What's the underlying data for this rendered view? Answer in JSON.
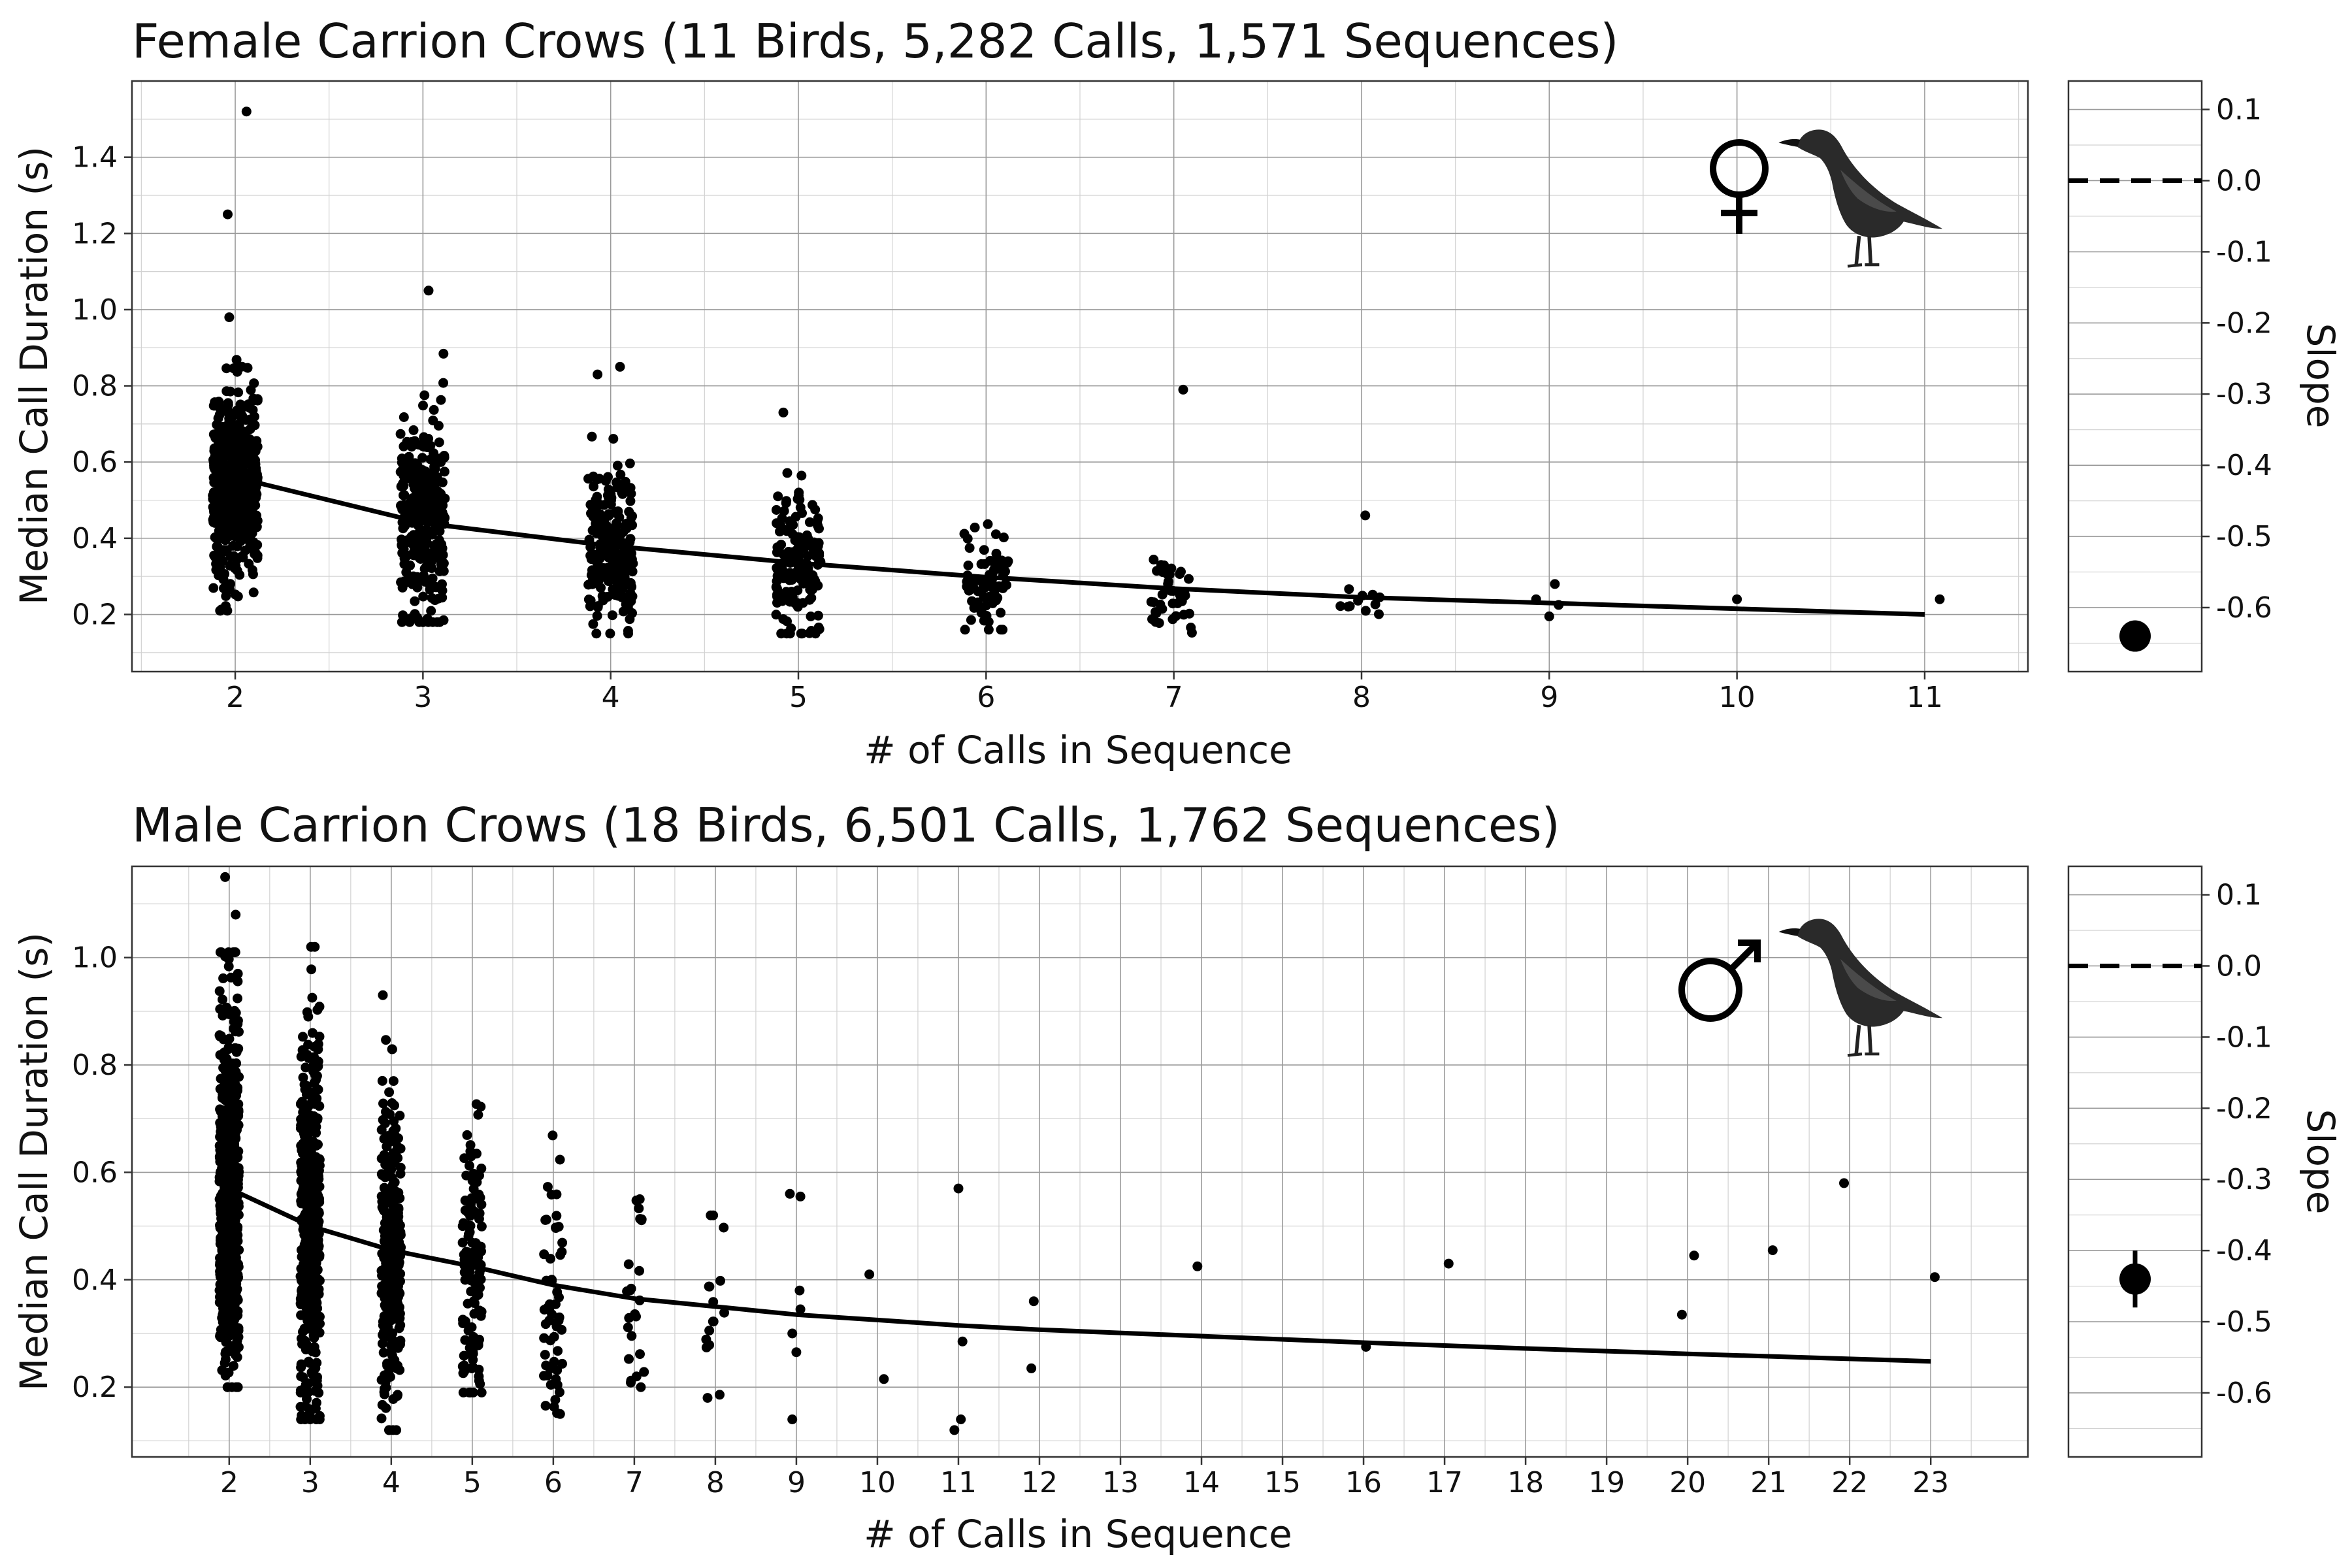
{
  "chart_data": [
    {
      "type": "scatter",
      "title": "Female Carrion Crows (11 Birds, 5,282 Calls, 1,571 Sequences)",
      "xlabel": "# of Calls in Sequence",
      "ylabel": "Median Call Duration (s)",
      "x_ticks": [
        2,
        3,
        4,
        5,
        6,
        7,
        8,
        9,
        10,
        11
      ],
      "y_ticks": [
        0.2,
        0.4,
        0.6,
        0.8,
        1.0,
        1.2,
        1.4
      ],
      "y_tick_labels": [
        "0.2",
        "0.4",
        "0.6",
        "0.8",
        "1.0",
        "1.2",
        "1.4"
      ],
      "xlim": [
        1.45,
        11.55
      ],
      "ylim": [
        0.05,
        1.6
      ],
      "grid": true,
      "symbol_icon": "female-symbol-icon",
      "bird_icon": "crow-icon",
      "fit_line": {
        "x": [
          2,
          3,
          4,
          5,
          6,
          7,
          8,
          9,
          10,
          11
        ],
        "y": [
          0.56,
          0.44,
          0.38,
          0.335,
          0.298,
          0.268,
          0.245,
          0.23,
          0.215,
          0.2
        ]
      },
      "jitter_groups": [
        {
          "x": 2,
          "n": 520,
          "center": 0.54,
          "spread": 0.13,
          "min": 0.21,
          "max": 0.98
        },
        {
          "x": 3,
          "n": 330,
          "center": 0.45,
          "spread": 0.13,
          "min": 0.18,
          "max": 0.93
        },
        {
          "x": 4,
          "n": 230,
          "center": 0.37,
          "spread": 0.1,
          "min": 0.15,
          "max": 0.72
        },
        {
          "x": 5,
          "n": 150,
          "center": 0.32,
          "spread": 0.09,
          "min": 0.15,
          "max": 0.64
        },
        {
          "x": 6,
          "n": 70,
          "center": 0.28,
          "spread": 0.07,
          "min": 0.16,
          "max": 0.54
        },
        {
          "x": 7,
          "n": 40,
          "center": 0.25,
          "spread": 0.05,
          "min": 0.12,
          "max": 0.51
        },
        {
          "x": 8,
          "n": 11,
          "center": 0.23,
          "spread": 0.025,
          "min": 0.17,
          "max": 0.3
        }
      ],
      "extra_points": [
        {
          "x": 2.06,
          "y": 1.52
        },
        {
          "x": 1.96,
          "y": 1.25
        },
        {
          "x": 3.03,
          "y": 1.05
        },
        {
          "x": 3.93,
          "y": 0.83
        },
        {
          "x": 4.05,
          "y": 0.85
        },
        {
          "x": 4.92,
          "y": 0.73
        },
        {
          "x": 7.05,
          "y": 0.79
        },
        {
          "x": 8.02,
          "y": 0.46
        },
        {
          "x": 8.93,
          "y": 0.24
        },
        {
          "x": 9.03,
          "y": 0.28
        },
        {
          "x": 9.0,
          "y": 0.195
        },
        {
          "x": 9.05,
          "y": 0.225
        },
        {
          "x": 10.0,
          "y": 0.24
        },
        {
          "x": 11.08,
          "y": 0.24
        }
      ],
      "slope_panel": {
        "ylabel": "Slope",
        "ylim": [
          -0.69,
          0.14
        ],
        "y_ticks": [
          0.1,
          0.0,
          -0.1,
          -0.2,
          -0.3,
          -0.4,
          -0.5,
          -0.6
        ],
        "y_tick_labels": [
          "0.1",
          "0.0",
          "-0.1",
          "-0.2",
          "-0.3",
          "-0.4",
          "-0.5",
          "-0.6"
        ],
        "reference": 0.0,
        "estimate": -0.64,
        "ci": [
          -0.64,
          -0.64
        ]
      }
    },
    {
      "type": "scatter",
      "title": "Male Carrion Crows (18 Birds, 6,501 Calls, 1,762 Sequences)",
      "xlabel": "# of Calls in Sequence",
      "ylabel": "Median Call Duration (s)",
      "x_ticks": [
        2,
        3,
        4,
        5,
        6,
        7,
        8,
        9,
        10,
        11,
        12,
        13,
        14,
        15,
        16,
        17,
        18,
        19,
        20,
        21,
        22,
        23
      ],
      "y_ticks": [
        0.2,
        0.4,
        0.6,
        0.8,
        1.0
      ],
      "y_tick_labels": [
        "0.2",
        "0.4",
        "0.6",
        "0.8",
        "1.0"
      ],
      "xlim": [
        0.8,
        24.2
      ],
      "ylim": [
        0.07,
        1.17
      ],
      "grid": true,
      "symbol_icon": "male-symbol-icon",
      "bird_icon": "crow-icon",
      "fit_line": {
        "x": [
          2,
          3,
          4,
          5,
          6,
          7,
          8,
          9,
          10,
          11,
          12,
          14,
          16,
          18,
          20,
          23
        ],
        "y": [
          0.57,
          0.5,
          0.455,
          0.425,
          0.39,
          0.365,
          0.35,
          0.335,
          0.325,
          0.315,
          0.307,
          0.295,
          0.283,
          0.272,
          0.262,
          0.248
        ]
      },
      "jitter_groups": [
        {
          "x": 2,
          "n": 560,
          "center": 0.57,
          "spread": 0.18,
          "min": 0.2,
          "max": 1.01
        },
        {
          "x": 3,
          "n": 480,
          "center": 0.5,
          "spread": 0.17,
          "min": 0.14,
          "max": 1.02
        },
        {
          "x": 4,
          "n": 300,
          "center": 0.46,
          "spread": 0.15,
          "min": 0.12,
          "max": 0.93
        },
        {
          "x": 5,
          "n": 130,
          "center": 0.42,
          "spread": 0.13,
          "min": 0.19,
          "max": 0.81
        },
        {
          "x": 6,
          "n": 55,
          "center": 0.37,
          "spread": 0.11,
          "min": 0.15,
          "max": 0.69
        },
        {
          "x": 7,
          "n": 24,
          "center": 0.34,
          "spread": 0.1,
          "min": 0.2,
          "max": 0.55
        },
        {
          "x": 8,
          "n": 16,
          "center": 0.34,
          "spread": 0.1,
          "min": 0.18,
          "max": 0.52
        }
      ],
      "extra_points": [
        {
          "x": 1.95,
          "y": 1.15
        },
        {
          "x": 2.08,
          "y": 1.08
        },
        {
          "x": 8.92,
          "y": 0.56
        },
        {
          "x": 9.05,
          "y": 0.555
        },
        {
          "x": 9.04,
          "y": 0.38
        },
        {
          "x": 9.05,
          "y": 0.345
        },
        {
          "x": 8.95,
          "y": 0.3
        },
        {
          "x": 9.0,
          "y": 0.265
        },
        {
          "x": 8.95,
          "y": 0.14
        },
        {
          "x": 9.9,
          "y": 0.41
        },
        {
          "x": 10.08,
          "y": 0.215
        },
        {
          "x": 11.0,
          "y": 0.57
        },
        {
          "x": 11.05,
          "y": 0.285
        },
        {
          "x": 11.03,
          "y": 0.14
        },
        {
          "x": 10.95,
          "y": 0.12
        },
        {
          "x": 11.93,
          "y": 0.36
        },
        {
          "x": 11.9,
          "y": 0.235
        },
        {
          "x": 13.95,
          "y": 0.425
        },
        {
          "x": 16.03,
          "y": 0.275
        },
        {
          "x": 17.05,
          "y": 0.43
        },
        {
          "x": 19.93,
          "y": 0.335
        },
        {
          "x": 20.08,
          "y": 0.445
        },
        {
          "x": 21.05,
          "y": 0.455
        },
        {
          "x": 21.93,
          "y": 0.58
        },
        {
          "x": 23.05,
          "y": 0.405
        }
      ],
      "slope_panel": {
        "ylabel": "Slope",
        "ylim": [
          -0.69,
          0.14
        ],
        "y_ticks": [
          0.1,
          0.0,
          -0.1,
          -0.2,
          -0.3,
          -0.4,
          -0.5,
          -0.6
        ],
        "y_tick_labels": [
          "0.1",
          "0.0",
          "-0.1",
          "-0.2",
          "-0.3",
          "-0.4",
          "-0.5",
          "-0.6"
        ],
        "reference": 0.0,
        "estimate": -0.44,
        "ci": [
          -0.48,
          -0.4
        ]
      }
    }
  ]
}
